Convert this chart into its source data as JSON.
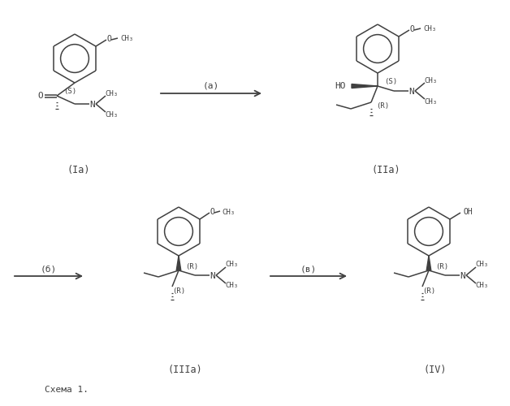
{
  "bg_color": "#ffffff",
  "line_color": "#404040",
  "text_color": "#404040",
  "fig_width": 6.28,
  "fig_height": 5.0,
  "dpi": 100,
  "schema_label": "Схема 1.",
  "reaction_a_label": "(a)",
  "reaction_b_label": "(б)",
  "reaction_c_label": "(в)",
  "compound_Ia": "(Ia)",
  "compound_IIa": "(IIa)",
  "compound_IIIa": "(IIIa)",
  "compound_IV": "(IV)"
}
